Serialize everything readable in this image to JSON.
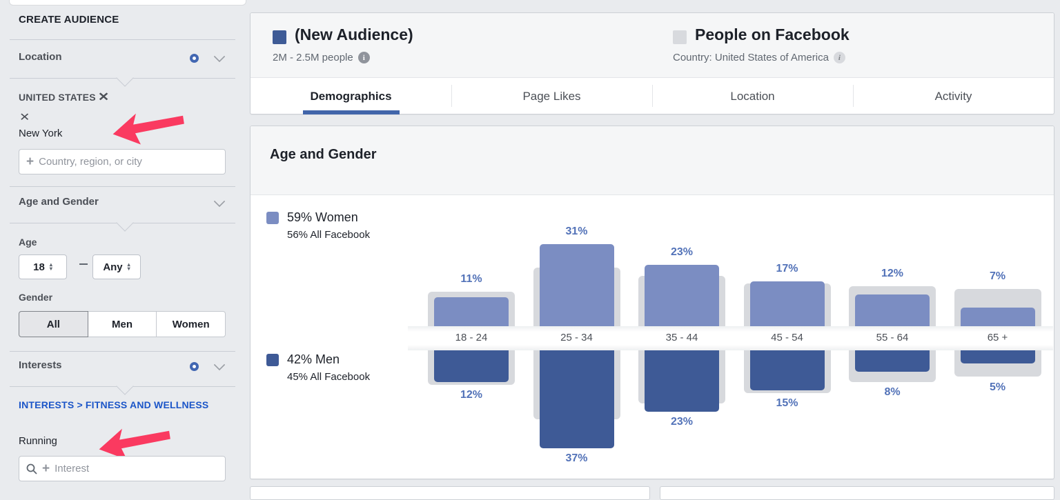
{
  "page": {
    "background": "#e9ebee"
  },
  "icons": {
    "close": "✕",
    "plus": "+",
    "dropdown_arrow_up": "▴",
    "dropdown_arrow_down": "▾"
  },
  "sidebar": {
    "heading": "CREATE AUDIENCE",
    "location": {
      "title": "Location",
      "filter_active": true,
      "selected_country": "UNITED STATES",
      "selected_region": "New York",
      "input_placeholder": "Country, region, or city"
    },
    "age_gender": {
      "title": "Age and Gender",
      "age_label": "Age",
      "age_min_value": "18",
      "age_max_value": "Any",
      "gender_label": "Gender",
      "gender_options": [
        "All",
        "Men",
        "Women"
      ],
      "gender_selected": "All"
    },
    "interests": {
      "title": "Interests",
      "filter_active": true,
      "breadcrumb": "INTERESTS > FITNESS AND WELLNESS",
      "selected_interest": "Running",
      "input_placeholder": "Interest"
    }
  },
  "header": {
    "audience": {
      "title": "(New Audience)",
      "subtitle": "2M - 2.5M people",
      "swatch_color": "#3e5b96"
    },
    "benchmark": {
      "title": "People on Facebook",
      "subtitle": "Country: United States of America",
      "swatch_color": "#d8dade"
    },
    "tabs": [
      {
        "label": "Demographics",
        "active": true
      },
      {
        "label": "Page Likes",
        "active": false
      },
      {
        "label": "Location",
        "active": false
      },
      {
        "label": "Activity",
        "active": false
      }
    ]
  },
  "chart_card": {
    "title": "Age and Gender"
  },
  "chart_data": {
    "type": "bar",
    "title": "Age and Gender",
    "subtype": "mirrored-comparison (women above axis band, men below; gray = All Facebook benchmark)",
    "categories": [
      "18 - 24",
      "25 - 34",
      "35 - 44",
      "45 - 54",
      "55 - 64",
      "65 +"
    ],
    "series": [
      {
        "name": "Women (audience)",
        "values": [
          11,
          31,
          23,
          17,
          12,
          7
        ],
        "color": "#7b8dc2",
        "labels": [
          "11%",
          "31%",
          "23%",
          "17%",
          "12%",
          "7%"
        ]
      },
      {
        "name": "Women (All Facebook, unlabeled est.)",
        "values": [
          13,
          22,
          19,
          16,
          15,
          14
        ],
        "color": "#d7d9dd"
      },
      {
        "name": "Men (audience)",
        "values": [
          12,
          37,
          23,
          15,
          8,
          5
        ],
        "color": "#3e5a96",
        "labels": [
          "12%",
          "37%",
          "23%",
          "15%",
          "8%",
          "5%"
        ]
      },
      {
        "name": "Men (All Facebook, unlabeled est.)",
        "values": [
          13,
          26,
          20,
          16,
          12,
          10
        ],
        "color": "#d7d9dd"
      }
    ],
    "legend": {
      "position": "left",
      "women": {
        "main": "59% Women",
        "sub": "56% All Facebook",
        "color": "#7b8dc2"
      },
      "men": {
        "main": "42% Men",
        "sub": "45% All Facebook",
        "color": "#3e5a96"
      }
    },
    "value_label_color": "#5272b8",
    "grid": false
  },
  "annotations": {
    "arrow_color": "#fa3a60",
    "arrows": [
      "points at selected region New York",
      "points at selected interest Running"
    ]
  }
}
